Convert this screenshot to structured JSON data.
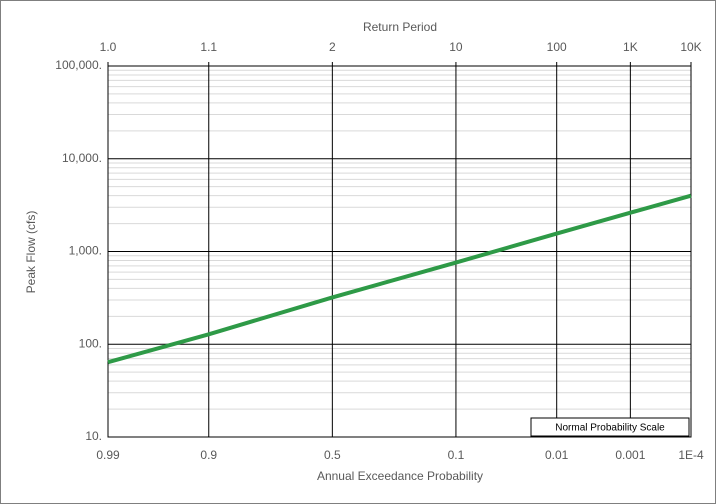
{
  "chart_data": {
    "type": "line",
    "x_label": "Annual Exceedance Probability",
    "x2_label": "Return Period",
    "y_label": "Peak Flow (cfs)",
    "annotation": "Normal Probability Scale",
    "x_scale": "normal-probability",
    "y_scale": "log",
    "grid": true,
    "xlim": [
      0.99,
      0.0001
    ],
    "xticks": [
      0.99,
      0.9,
      0.5,
      0.1,
      0.01,
      0.001,
      {
        "value": 0.0001,
        "label": "1E-4"
      }
    ],
    "x2ticks": [
      {
        "value": 1.0101,
        "label": "1.0"
      },
      {
        "value": 1.1111,
        "label": "1.1"
      },
      2,
      10,
      100,
      {
        "value": 1000,
        "label": "1K"
      },
      {
        "value": 10000,
        "label": "10K"
      }
    ],
    "ylim": [
      10,
      100000
    ],
    "yticks": [
      {
        "value": 10,
        "label": "10."
      },
      {
        "value": 100,
        "label": "100."
      },
      {
        "value": 1000,
        "label": "1,000."
      },
      {
        "value": 10000,
        "label": "10,000."
      },
      {
        "value": 100000,
        "label": "100,000."
      }
    ],
    "x": [
      0.99,
      0.9,
      0.5,
      0.1,
      0.01,
      0.001,
      0.0001
    ],
    "series": [
      {
        "color": "#2e9a47",
        "values": [
          64,
          128,
          320,
          760,
          1560,
          2620,
          4000
        ]
      }
    ]
  }
}
